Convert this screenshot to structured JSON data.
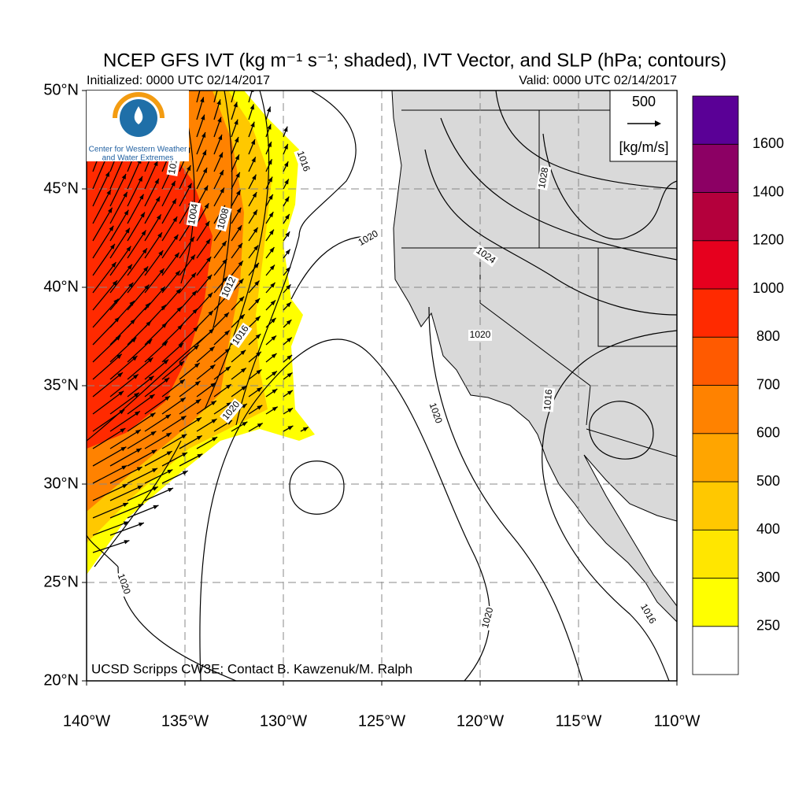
{
  "title": "NCEP GFS IVT (kg m⁻¹ s⁻¹; shaded), IVT Vector, and SLP (hPa; contours)",
  "initialized": "Initialized: 0000 UTC 02/14/2017",
  "valid": "Valid: 0000 UTC 02/14/2017",
  "credit": "UCSD Scripps CW3E; Contact B. Kawzenuk/M. Ralph",
  "logo": {
    "line1": "Center for Western Weather",
    "line2": "and Water Extremes"
  },
  "lat_labels": [
    "50°N",
    "45°N",
    "40°N",
    "35°N",
    "30°N",
    "25°N",
    "20°N"
  ],
  "lon_labels": [
    "140°W",
    "135°W",
    "130°W",
    "125°W",
    "120°W",
    "115°W",
    "110°W"
  ],
  "vector_legend": {
    "value": "500",
    "units": "[kg/m/s]"
  },
  "colorbar": {
    "levels": [
      "250",
      "300",
      "400",
      "500",
      "600",
      "700",
      "800",
      "1000",
      "1200",
      "1400",
      "1600"
    ],
    "colors": [
      "#ffffff",
      "#ffff00",
      "#ffe600",
      "#ffc800",
      "#ffa500",
      "#ff8200",
      "#ff5a00",
      "#ff2a00",
      "#e6001e",
      "#b4003c",
      "#8c0064",
      "#5a0096"
    ]
  },
  "contour_labels": [
    "1004",
    "1008",
    "1012",
    "1016",
    "1020",
    "1016",
    "1020",
    "1020",
    "1024",
    "1028",
    "1020",
    "1020",
    "1020",
    "1016",
    "1016",
    "1016"
  ]
}
